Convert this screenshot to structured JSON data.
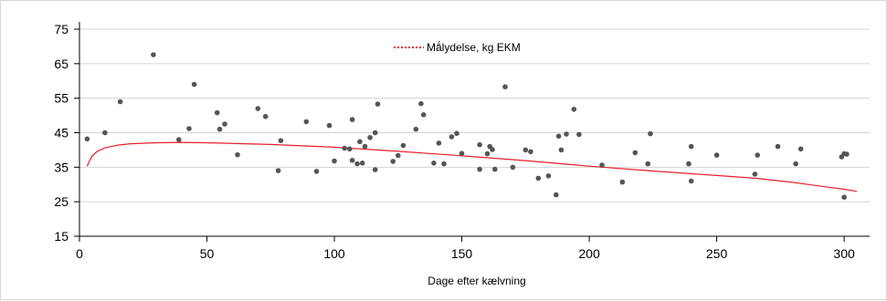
{
  "chart_data": {
    "type": "scatter",
    "title": "",
    "xlabel": "Dage efter kælvning",
    "ylabel": "",
    "xlim": [
      0,
      310
    ],
    "ylim": [
      15,
      75
    ],
    "x_ticks": [
      0,
      50,
      100,
      150,
      200,
      250,
      300
    ],
    "y_ticks": [
      15,
      25,
      35,
      45,
      55,
      65,
      75
    ],
    "grid": "horizontal",
    "legend_position": "top-center",
    "series": [
      {
        "type": "scatter",
        "color": "#555555",
        "points": [
          [
            3,
            43.2
          ],
          [
            10,
            45.0
          ],
          [
            16,
            54.0
          ],
          [
            29,
            67.6
          ],
          [
            39,
            43.0
          ],
          [
            43,
            46.2
          ],
          [
            45,
            59.0
          ],
          [
            54,
            50.8
          ],
          [
            55,
            46.0
          ],
          [
            57,
            47.5
          ],
          [
            62,
            38.6
          ],
          [
            70,
            52.0
          ],
          [
            73,
            49.7
          ],
          [
            78,
            34.0
          ],
          [
            79,
            42.7
          ],
          [
            89,
            48.2
          ],
          [
            93,
            33.8
          ],
          [
            98,
            47.1
          ],
          [
            100,
            36.8
          ],
          [
            104,
            40.5
          ],
          [
            106,
            40.3
          ],
          [
            107,
            48.8
          ],
          [
            107,
            37.0
          ],
          [
            109,
            36.0
          ],
          [
            110,
            42.4
          ],
          [
            111,
            36.2
          ],
          [
            112,
            41.0
          ],
          [
            114,
            43.6
          ],
          [
            116,
            45.0
          ],
          [
            116,
            34.3
          ],
          [
            117,
            53.3
          ],
          [
            123,
            36.7
          ],
          [
            125,
            38.4
          ],
          [
            127,
            41.3
          ],
          [
            132,
            46.0
          ],
          [
            134,
            53.4
          ],
          [
            135,
            50.2
          ],
          [
            139,
            36.2
          ],
          [
            141,
            42.0
          ],
          [
            143,
            36.0
          ],
          [
            146,
            43.8
          ],
          [
            148,
            44.8
          ],
          [
            150,
            39.0
          ],
          [
            157,
            41.5
          ],
          [
            157,
            34.4
          ],
          [
            160,
            38.9
          ],
          [
            161,
            41.0
          ],
          [
            162,
            40.1
          ],
          [
            163,
            34.4
          ],
          [
            167,
            58.3
          ],
          [
            170,
            35.0
          ],
          [
            175,
            40.0
          ],
          [
            177,
            39.5
          ],
          [
            180,
            31.8
          ],
          [
            184,
            32.5
          ],
          [
            187,
            27.0
          ],
          [
            188,
            44.0
          ],
          [
            189,
            40.0
          ],
          [
            191,
            44.6
          ],
          [
            194,
            51.8
          ],
          [
            196,
            44.5
          ],
          [
            205,
            35.6
          ],
          [
            213,
            30.7
          ],
          [
            218,
            39.2
          ],
          [
            223,
            36.0
          ],
          [
            224,
            44.7
          ],
          [
            239,
            36.0
          ],
          [
            240,
            41.0
          ],
          [
            240,
            31.0
          ],
          [
            250,
            38.5
          ],
          [
            265,
            33.0
          ],
          [
            266,
            38.5
          ],
          [
            274,
            41.0
          ],
          [
            281,
            36.0
          ],
          [
            283,
            40.3
          ],
          [
            299,
            38.0
          ],
          [
            300,
            26.3
          ],
          [
            300,
            38.9
          ],
          [
            301,
            38.8
          ]
        ]
      },
      {
        "type": "line",
        "name": "Mǻlydelse, kg EKM",
        "color": "#e8202a",
        "style": "dotted",
        "points": [
          [
            3,
            35.3
          ],
          [
            4,
            37.0
          ],
          [
            5,
            38.3
          ],
          [
            7,
            39.6
          ],
          [
            10,
            40.6
          ],
          [
            15,
            41.4
          ],
          [
            20,
            41.8
          ],
          [
            30,
            42.1
          ],
          [
            40,
            42.2
          ],
          [
            50,
            42.1
          ],
          [
            75,
            41.6
          ],
          [
            100,
            40.8
          ],
          [
            125,
            39.6
          ],
          [
            150,
            38.3
          ],
          [
            175,
            36.9
          ],
          [
            200,
            35.3
          ],
          [
            225,
            33.9
          ],
          [
            250,
            32.6
          ],
          [
            265,
            31.8
          ],
          [
            280,
            30.6
          ],
          [
            290,
            29.6
          ],
          [
            300,
            28.6
          ],
          [
            305,
            28.0
          ]
        ]
      }
    ]
  }
}
